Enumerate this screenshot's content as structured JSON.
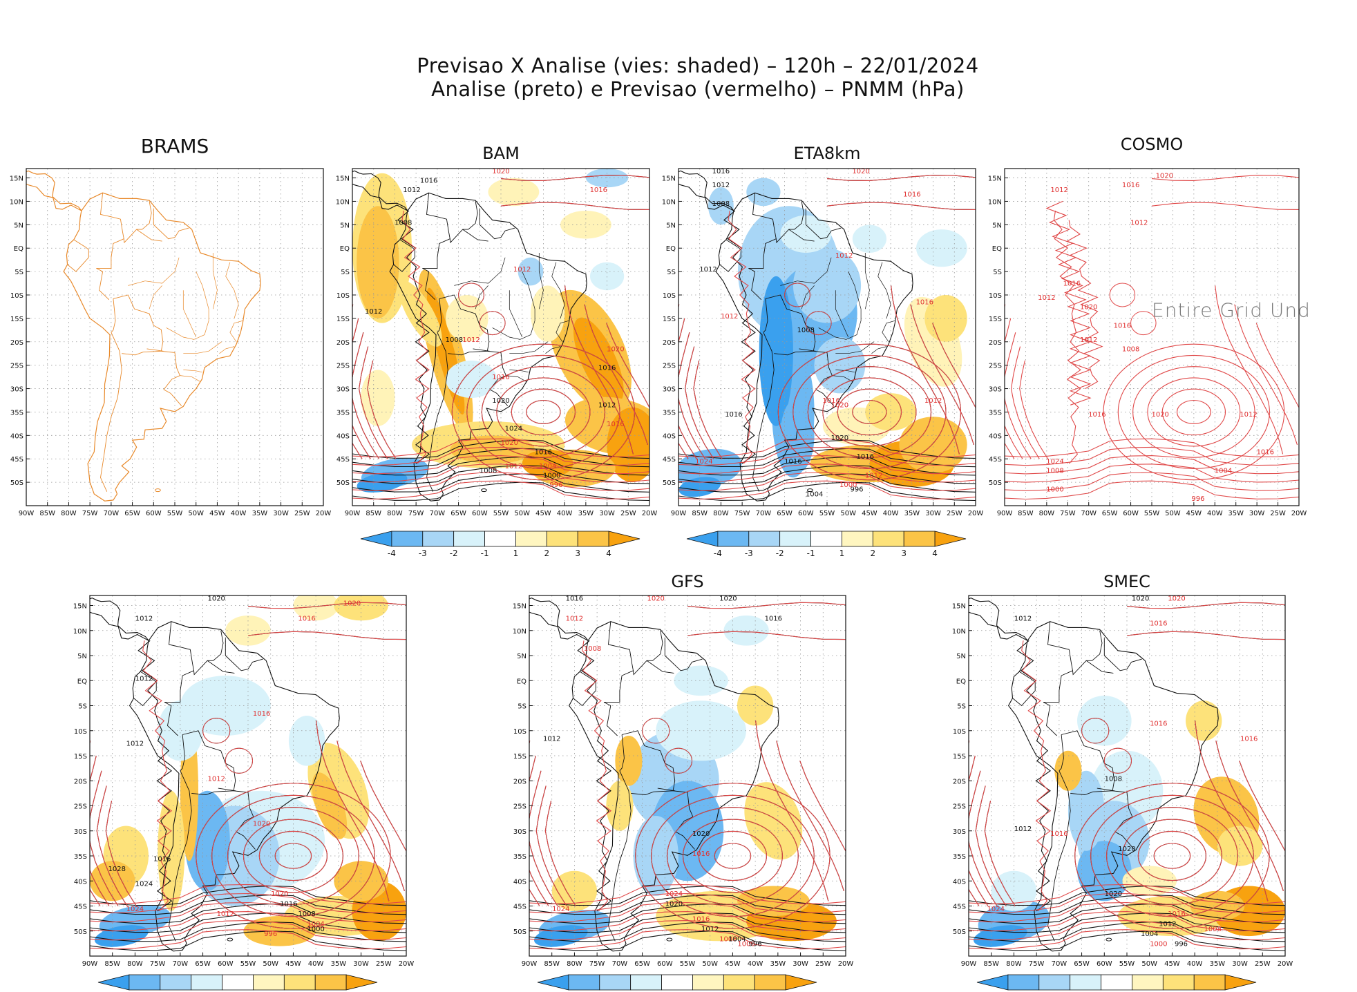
{
  "title_line1": "Previsao X Analise (vies: shaded) – 120h – 22/01/2024",
  "title_line2": "Analise (preto) e Previsao (vermelho) – PNMM (hPa)",
  "axes": {
    "lon_labels": [
      "90W",
      "85W",
      "80W",
      "75W",
      "70W",
      "65W",
      "60W",
      "55W",
      "50W",
      "45W",
      "40W",
      "35W",
      "30W",
      "25W",
      "20W"
    ],
    "lat_labels": [
      "15N",
      "10N",
      "5N",
      "EQ",
      "5S",
      "10S",
      "15S",
      "20S",
      "25S",
      "30S",
      "35S",
      "40S",
      "45S",
      "50S"
    ],
    "lat_labels_smec": [
      "15N",
      "10N",
      "5N",
      "EQ",
      "5S",
      "10S",
      "15S",
      "20S",
      "25S",
      "30S",
      "35S",
      "40S",
      "45S",
      "50S"
    ]
  },
  "colorbar": {
    "labels": [
      "-4",
      "-3",
      "-2",
      "-1",
      "1",
      "2",
      "3",
      "4"
    ],
    "colors": [
      "#3aa0ee",
      "#6cb8f2",
      "#a8d6f6",
      "#d8f2fa",
      "#ffffff",
      "#fff6c0",
      "#fde27a",
      "#fbc447",
      "#f8a20f"
    ]
  },
  "panels": [
    {
      "id": "brams",
      "name": "BRAMS",
      "message": ""
    },
    {
      "id": "bam",
      "name": "BAM",
      "message": ""
    },
    {
      "id": "eta",
      "name": "ETA8km",
      "message": ""
    },
    {
      "id": "cosmo",
      "name": "COSMO",
      "message": "Entire Grid Und"
    },
    {
      "id": "unnamed",
      "name": "",
      "message": ""
    },
    {
      "id": "gfs",
      "name": "GFS",
      "message": ""
    },
    {
      "id": "smec",
      "name": "SMEC",
      "message": ""
    }
  ],
  "contour_labels": {
    "bam": [
      "1016",
      "1020",
      "1012",
      "1016",
      "1008",
      "1012",
      "1016",
      "1012",
      "1008",
      "1016",
      "1020",
      "1020",
      "1012",
      "1016",
      "1024",
      "1020",
      "1016",
      "1012",
      "1008",
      "1004",
      "1000",
      "996",
      "1012"
    ],
    "eta": [
      "1016",
      "1020",
      "1012",
      "1016",
      "1008",
      "1012",
      "1012",
      "1012",
      "1008",
      "1016",
      "1016",
      "1020",
      "1020",
      "1012",
      "1016",
      "1024",
      "1016",
      "1012",
      "1004",
      "1000",
      "996",
      "1016"
    ],
    "cosmo": [
      "1020",
      "1016",
      "1012",
      "1012",
      "1016",
      "1012",
      "1020",
      "1016",
      "1012",
      "1024",
      "1020",
      "1016",
      "1012",
      "1008",
      "1004",
      "1000",
      "996",
      "1016",
      "1008"
    ],
    "unnamed": [
      "1020",
      "1020",
      "1012",
      "1016",
      "1012",
      "1016",
      "1012",
      "1020",
      "1016",
      "1012",
      "1024",
      "1020",
      "1016",
      "1012",
      "1008",
      "1004",
      "1000",
      "996",
      "1028",
      "1024"
    ],
    "gfs": [
      "1016",
      "1020",
      "1020",
      "1012",
      "1016",
      "1008",
      "1012",
      "1016",
      "1020",
      "1024",
      "1020",
      "1016",
      "1012",
      "1008",
      "1004",
      "1000",
      "996",
      "1024"
    ],
    "smec": [
      "1020",
      "1020",
      "1012",
      "1016",
      "1008",
      "1016",
      "1012",
      "1016",
      "1020",
      "1016",
      "1020",
      "1016",
      "1012",
      "1008",
      "1004",
      "1000",
      "996",
      "1024"
    ]
  }
}
